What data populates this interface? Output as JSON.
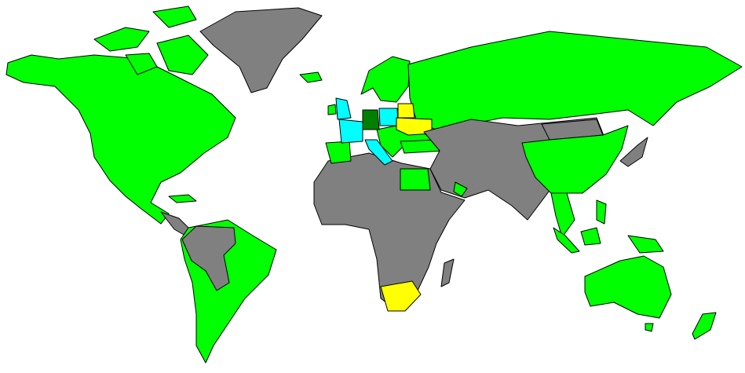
{
  "map": {
    "background": "#ffffff",
    "border_color": "#000000",
    "colors": {
      "green": "#00ff00",
      "gray": "#808080",
      "cyan": "#00ffff",
      "yellow": "#ffff00",
      "dark_green": "#008000"
    }
  }
}
